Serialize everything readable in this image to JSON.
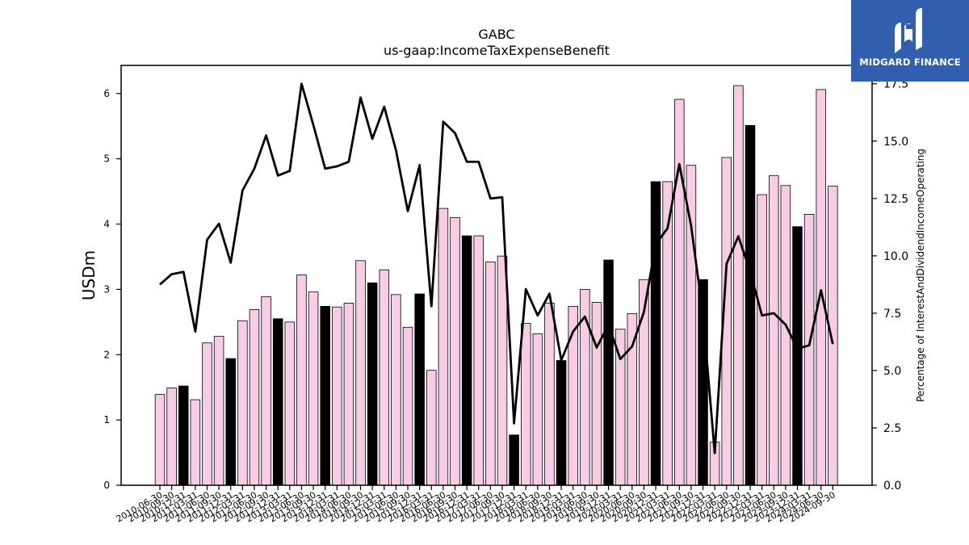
{
  "logo": {
    "text": "MIDGARD FINANCE"
  },
  "chart_data": {
    "type": "bar",
    "title": "GABC",
    "subtitle": "us-gaap:IncomeTaxExpenseBenefit",
    "ylabel": "USDm",
    "y2label": "Percentage of InterestAndDividendIncomeOperating",
    "ylim": [
      0,
      6.43
    ],
    "y2lim": [
      0,
      18.3
    ],
    "yticks": [
      "0",
      "1",
      "2",
      "3",
      "4",
      "5",
      "6"
    ],
    "y2ticks": [
      "0.0",
      "2.5",
      "5.0",
      "7.5",
      "10.0",
      "12.5",
      "15.0",
      "17.5"
    ],
    "colors": {
      "bar": "#f8cce4",
      "bar_highlight": "#000000",
      "line": "#000000"
    },
    "categories": [
      "2010-06-30",
      "2010-09-30",
      "2010-12-31",
      "2011-03-31",
      "2011-06-30",
      "2011-09-30",
      "2011-12-31",
      "2012-03-31",
      "2012-06-30",
      "2012-09-30",
      "2012-12-31",
      "2013-03-31",
      "2013-06-30",
      "2013-09-30",
      "2013-12-31",
      "2014-03-31",
      "2014-06-30",
      "2014-09-30",
      "2014-12-31",
      "2015-03-31",
      "2015-06-30",
      "2015-09-30",
      "2015-12-31",
      "2016-03-31",
      "2016-06-30",
      "2016-09-30",
      "2016-12-31",
      "2017-03-31",
      "2017-06-30",
      "2017-09-30",
      "2017-12-31",
      "2018-03-31",
      "2018-06-30",
      "2018-09-30",
      "2018-12-31",
      "2019-03-31",
      "2019-06-30",
      "2019-09-30",
      "2019-12-31",
      "2020-03-31",
      "2020-06-30",
      "2020-09-30",
      "2020-12-31",
      "2021-03-31",
      "2021-06-30",
      "2021-09-30",
      "2021-12-31",
      "2022-03-31",
      "2022-06-30",
      "2022-09-30",
      "2022-12-31",
      "2023-03-31",
      "2023-06-30",
      "2023-09-30",
      "2023-12-31",
      "2024-03-31",
      "2024-06-30",
      "2024-09-30"
    ],
    "series": [
      {
        "type": "bar",
        "values": [
          1.39,
          1.49,
          1.52,
          1.31,
          2.18,
          2.28,
          1.94,
          2.52,
          2.69,
          2.89,
          2.55,
          2.5,
          3.22,
          2.96,
          2.74,
          2.73,
          2.79,
          3.44,
          3.1,
          3.3,
          2.92,
          2.42,
          2.93,
          1.76,
          4.24,
          4.1,
          3.82,
          3.82,
          3.42,
          3.51,
          0.77,
          2.48,
          2.32,
          2.79,
          1.91,
          2.74,
          3.0,
          2.8,
          3.45,
          2.39,
          2.63,
          3.15,
          4.65,
          4.65,
          5.91,
          4.9,
          3.15,
          0.66,
          5.02,
          6.12,
          5.51,
          4.45,
          4.74,
          4.59,
          3.96,
          4.15,
          6.06,
          4.58
        ],
        "highlight": [
          false,
          false,
          true,
          false,
          false,
          false,
          true,
          false,
          false,
          false,
          true,
          false,
          false,
          false,
          true,
          false,
          false,
          false,
          true,
          false,
          false,
          false,
          true,
          false,
          false,
          false,
          true,
          false,
          false,
          false,
          true,
          false,
          false,
          false,
          true,
          false,
          false,
          false,
          true,
          false,
          false,
          false,
          true,
          false,
          false,
          false,
          true,
          false,
          false,
          false,
          true,
          false,
          false,
          false,
          true,
          false,
          false,
          false
        ]
      },
      {
        "type": "line",
        "axis": "right",
        "values": [
          8.75,
          9.2,
          9.3,
          6.7,
          10.7,
          11.4,
          9.7,
          12.85,
          13.8,
          15.25,
          13.5,
          13.7,
          17.5,
          15.7,
          13.8,
          13.9,
          14.1,
          16.9,
          15.1,
          16.5,
          14.6,
          11.95,
          13.95,
          7.8,
          15.85,
          15.35,
          14.1,
          14.1,
          12.5,
          12.55,
          2.7,
          8.55,
          7.4,
          8.35,
          5.45,
          6.7,
          7.35,
          6.0,
          7.0,
          5.5,
          6.05,
          7.55,
          10.5,
          11.2,
          14.0,
          11.3,
          7.45,
          1.4,
          9.65,
          10.85,
          9.3,
          7.4,
          7.5,
          7.0,
          5.95,
          6.1,
          8.5,
          6.15
        ]
      }
    ],
    "xtick_labels": [
      "2010-06-30",
      "2010-09-30",
      "2010-12-31",
      "2011-03-31",
      "2011-06-30",
      "2011-09-30",
      "2011-12-31",
      "2012-03-31",
      "2012-06-30",
      "2012-09-30",
      "2012-12-31",
      "2013-03-31",
      "2013-06-30",
      "2013-09-30",
      "2013-12-31",
      "2014-03-31",
      "2014-06-30",
      "2014-09-30",
      "2014-12-31",
      "2015-03-31",
      "2015-06-30",
      "2015-09-30",
      "2015-12-31",
      "2016-03-31",
      "2016-06-30",
      "2016-09-30",
      "2016-12-31",
      "2017-03-31",
      "2017-06-30",
      "2017-09-30",
      "2017-12-31",
      "2018-03-31",
      "2018-06-30",
      "2018-09-30",
      "2018-12-31",
      "2019-03-31",
      "2019-06-30",
      "2019-09-30",
      "2019-12-31",
      "2020-03-31",
      "2020-06-30",
      "2020-09-30",
      "2020-12-31",
      "2021-03-31",
      "2021-06-30",
      "2021-09-30",
      "2021-12-31",
      "2022-03-31",
      "2022-06-30",
      "2022-09-30",
      "2022-12-31",
      "2023-03-31",
      "2023-06-30",
      "2023-09-30",
      "2023-12-31",
      "2024-03-31",
      "2024-06-30",
      "2024-09-30"
    ],
    "grid": false
  }
}
